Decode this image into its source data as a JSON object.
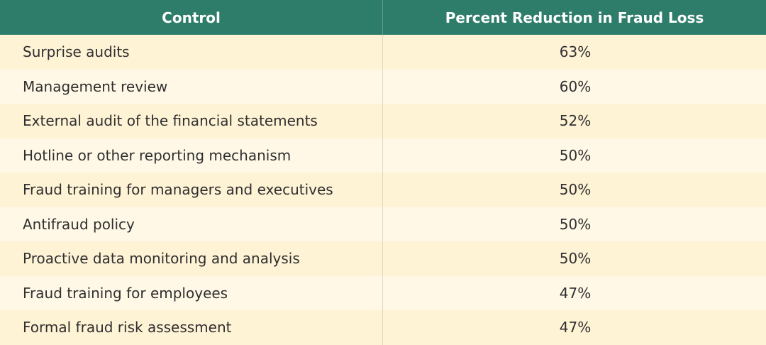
{
  "table": {
    "headers": [
      "Control",
      "Percent Reduction in Fraud Loss"
    ],
    "rows": [
      {
        "control": "Surprise audits",
        "reduction": "63%"
      },
      {
        "control": "Management review",
        "reduction": "60%"
      },
      {
        "control": "External audit of the financial statements",
        "reduction": "52%"
      },
      {
        "control": "Hotline or other reporting mechanism",
        "reduction": "50%"
      },
      {
        "control": "Fraud training for managers and executives",
        "reduction": "50%"
      },
      {
        "control": "Antifraud policy",
        "reduction": "50%"
      },
      {
        "control": "Proactive data monitoring and analysis",
        "reduction": "50%"
      },
      {
        "control": "Fraud training for employees",
        "reduction": "47%"
      },
      {
        "control": "Formal fraud risk assessment",
        "reduction": "47%"
      }
    ]
  },
  "colors": {
    "header_bg": "#2e7d6a",
    "header_text": "#ffffff",
    "row_odd": "#fff3d6",
    "row_even": "#fff8e6"
  }
}
